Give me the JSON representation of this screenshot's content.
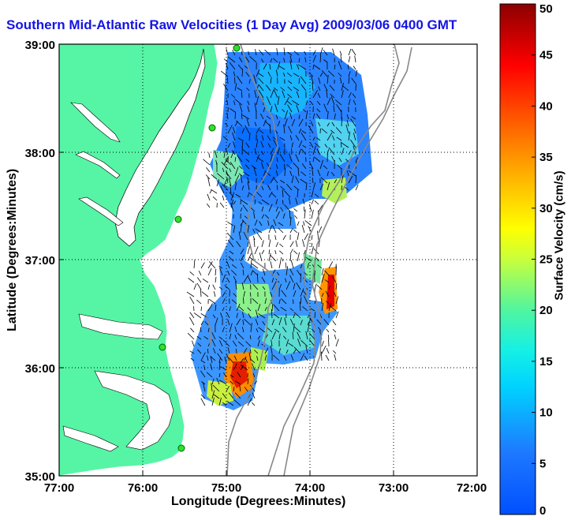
{
  "title": "Southern Mid-Atlantic Raw Velocities (1 Day Avg) 2009/03/06 0400 GMT",
  "x_axis_label": "Longitude (Degrees:Minutes)",
  "y_axis_label": "Latitude (Degrees:Minutes)",
  "x_ticks": [
    "77:00",
    "76:00",
    "75:00",
    "74:00",
    "73:00",
    "72:00"
  ],
  "y_ticks": [
    "39:00",
    "38:00",
    "37:00",
    "36:00",
    "35:00"
  ],
  "colorbar": {
    "label": "Surface Velocity (cm/s)",
    "ticks": [
      "0",
      "5",
      "10",
      "15",
      "20",
      "25",
      "30",
      "35",
      "40",
      "45",
      "50"
    ],
    "range": [
      0,
      50
    ]
  },
  "colors": {
    "land": "#55f5a5",
    "title": "#1414e6",
    "grid": "#000000"
  },
  "chart_data": {
    "type": "heatmap",
    "title": "Southern Mid-Atlantic Raw Velocities (1 Day Avg) 2009/03/06 0400 GMT",
    "xlabel": "Longitude (Degrees:Minutes)",
    "ylabel": "Latitude (Degrees:Minutes)",
    "xlim": [
      -77,
      -72
    ],
    "ylim": [
      35,
      39
    ],
    "grid": true,
    "colorbar_range": [
      0,
      50
    ],
    "colorbar_label": "Surface Velocity (cm/s)"
  }
}
